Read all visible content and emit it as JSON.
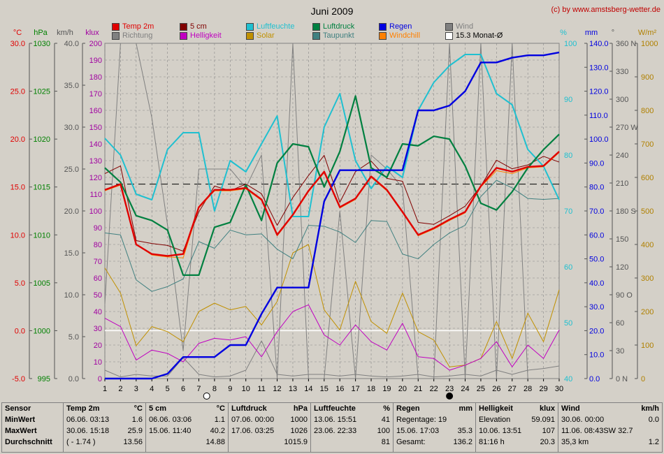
{
  "title": "Juni 2009",
  "copyright": "(c) by www.amstsberg-wetter.de",
  "axes": {
    "temp": {
      "unit": "°C",
      "ticks": [
        "30.0",
        "25.0",
        "20.0",
        "15.0",
        "10.0",
        "5.0",
        "0.0",
        "-5.0"
      ],
      "color": "#e00000"
    },
    "pressure": {
      "unit": "hPa",
      "ticks": [
        "1030",
        "1025",
        "1020",
        "1015",
        "1010",
        "1005",
        "1000",
        "995"
      ],
      "color": "#008000"
    },
    "wind": {
      "unit": "km/h",
      "ticks": [
        "40.0",
        "35.0",
        "30.0",
        "25.0",
        "20.0",
        "15.0",
        "10.0",
        "5.0",
        "0.0"
      ],
      "color": "#555555"
    },
    "lux": {
      "unit": "klux",
      "ticks": [
        "200",
        "190",
        "180",
        "170",
        "160",
        "150",
        "140",
        "130",
        "120",
        "110",
        "100",
        "90",
        "80",
        "70",
        "60",
        "50",
        "40",
        "30",
        "20",
        "10",
        "0"
      ],
      "color": "#a000a0"
    },
    "humidity": {
      "unit": "%",
      "ticks": [
        "100",
        "90",
        "80",
        "70",
        "60",
        "50",
        "40"
      ],
      "color": "#20c0d0"
    },
    "rain": {
      "unit": "mm",
      "ticks": [
        "140.0",
        "130.0",
        "120.0",
        "110.0",
        "100.0",
        "90.0",
        "80.0",
        "70.0",
        "60.0",
        "50.0",
        "40.0",
        "30.0",
        "20.0",
        "10.0",
        "0.0"
      ],
      "color": "#0000e0"
    },
    "direction": {
      "unit": "°",
      "ticks": [
        "360 N",
        "330",
        "300",
        "270 W",
        "240",
        "210",
        "180 S",
        "150",
        "120",
        "90 O",
        "60",
        "30",
        "0 N"
      ],
      "color": "#555555"
    },
    "solar": {
      "unit": "W/m²",
      "ticks": [
        "1000",
        "900",
        "800",
        "700",
        "600",
        "500",
        "400",
        "300",
        "200",
        "100",
        "0"
      ],
      "color": "#b08000"
    }
  },
  "legend": [
    {
      "label": "Temp 2m",
      "color": "#e00000"
    },
    {
      "label": "Richtung",
      "color": "#808080"
    },
    {
      "label": "5 cm",
      "color": "#800000"
    },
    {
      "label": "Helligkeit",
      "color": "#c000c0"
    },
    {
      "label": "Luftfeuchte",
      "color": "#20c0d0"
    },
    {
      "label": "Solar",
      "color": "#c09000"
    },
    {
      "label": "Luftdruck",
      "color": "#008040"
    },
    {
      "label": "Taupunkt",
      "color": "#408080"
    },
    {
      "label": "Regen",
      "color": "#0000e0"
    },
    {
      "label": "Windchill",
      "color": "#ff8000"
    },
    {
      "label": "Wind",
      "color": "#808080"
    },
    {
      "label": "15.3 Monat-Ø",
      "color": "#ffffff"
    }
  ],
  "chart_data": {
    "type": "line",
    "title": "Juni 2009",
    "x": [
      1,
      2,
      3,
      4,
      5,
      6,
      7,
      8,
      9,
      10,
      11,
      12,
      13,
      14,
      15,
      16,
      17,
      18,
      19,
      20,
      21,
      22,
      23,
      24,
      25,
      26,
      27,
      28,
      29,
      30
    ],
    "monthly_mean_temp": 15.3,
    "series": [
      {
        "name": "Temp 2m",
        "axis": "temp",
        "values": [
          14.7,
          15.3,
          9.0,
          8.0,
          7.8,
          8.0,
          12.9,
          14.7,
          14.7,
          14.9,
          13.7,
          10.0,
          12.1,
          14.6,
          16.6,
          12.9,
          13.8,
          16.1,
          14.7,
          12.4,
          10.0,
          10.7,
          11.6,
          12.4,
          15.1,
          17.0,
          16.6,
          17.1,
          17.2,
          18.7
        ],
        "line_color": "#e00000"
      },
      {
        "name": "5 cm",
        "axis": "temp",
        "values": [
          16.4,
          17.2,
          9.4,
          9.1,
          8.9,
          8.3,
          12.4,
          15.1,
          14.6,
          15.3,
          14.3,
          11.0,
          13.9,
          16.2,
          18.3,
          13.4,
          16.6,
          17.7,
          15.9,
          15.6,
          11.3,
          11.1,
          12.0,
          13.0,
          15.1,
          17.8,
          16.9,
          17.3,
          18.2,
          17.6
        ],
        "line_color": "#800000"
      },
      {
        "name": "Windchill",
        "axis": "temp",
        "values": [
          14.6,
          15.2,
          9.0,
          7.9,
          7.7,
          7.6,
          12.8,
          14.6,
          14.6,
          14.8,
          13.6,
          9.9,
          12.0,
          14.5,
          16.5,
          12.8,
          13.7,
          16.0,
          14.6,
          12.3,
          9.9,
          10.6,
          11.5,
          12.3,
          15.0,
          16.7,
          16.4,
          17.0,
          17.1,
          18.6
        ],
        "line_color": "#ff8000"
      },
      {
        "name": "Taupunkt",
        "axis": "temp",
        "values": [
          10.2,
          10.0,
          5.3,
          4.1,
          4.6,
          5.4,
          9.3,
          8.6,
          10.5,
          10.0,
          10.1,
          8.5,
          7.5,
          11.0,
          10.9,
          10.3,
          9.2,
          11.5,
          11.4,
          8.0,
          7.5,
          9.0,
          10.2,
          11.0,
          14.0,
          15.7,
          14.9,
          13.8,
          13.7,
          13.8
        ],
        "line_color": "#408080"
      },
      {
        "name": "Luftdruck",
        "axis": "pressure",
        "values": [
          1017.0,
          1015.5,
          1012.0,
          1011.5,
          1010.5,
          1005.8,
          1005.8,
          1010.8,
          1011.3,
          1015.2,
          1011.5,
          1017.5,
          1019.5,
          1019.2,
          1015.0,
          1018.7,
          1024.5,
          1017.0,
          1016.0,
          1019.5,
          1019.3,
          1020.3,
          1020.0,
          1017.2,
          1013.3,
          1012.6,
          1014.5,
          1017.0,
          1018.9,
          1020.5
        ],
        "line_color": "#008040"
      },
      {
        "name": "Luftfeuchte",
        "axis": "humidity",
        "values": [
          83,
          80,
          73,
          72,
          81,
          84,
          84,
          70,
          79,
          77,
          82,
          87,
          69,
          69,
          85,
          91,
          79,
          74,
          78,
          76,
          88,
          93,
          96,
          98,
          98,
          91,
          89,
          81,
          78,
          72
        ],
        "line_color": "#20c0d0"
      },
      {
        "name": "Regen",
        "axis": "rain",
        "values": [
          0,
          0,
          0,
          0,
          2,
          9,
          9,
          9,
          14,
          14,
          27,
          38,
          38,
          38,
          74,
          87,
          87,
          87,
          87,
          87,
          112,
          112,
          114,
          120,
          132,
          132,
          134,
          135,
          135,
          136.2
        ],
        "line_color": "#0000e0"
      },
      {
        "name": "Helligkeit",
        "axis": "lux",
        "values": [
          36,
          31,
          11,
          17,
          15,
          10,
          21,
          24,
          23,
          25,
          13,
          28,
          40,
          44,
          26,
          20,
          32,
          22,
          17,
          33,
          13,
          12,
          5,
          8,
          12,
          22,
          7,
          20,
          12,
          29
        ],
        "line_color": "#c000c0"
      },
      {
        "name": "Solar",
        "axis": "solar",
        "values": [
          330,
          255,
          98,
          155,
          140,
          110,
          200,
          225,
          205,
          215,
          160,
          230,
          375,
          400,
          205,
          145,
          290,
          170,
          135,
          255,
          140,
          115,
          35,
          40,
          60,
          170,
          60,
          195,
          110,
          265
        ],
        "line_color": "#c09000"
      },
      {
        "name": "Wind",
        "axis": "wind",
        "values": [
          1.0,
          0.2,
          0.5,
          0.3,
          0.3,
          2.5,
          0.5,
          0.2,
          0.3,
          1.0,
          4.5,
          0.5,
          0.3,
          0.5,
          0.5,
          0.3,
          0.5,
          0.3,
          0.2,
          0.3,
          0.5,
          0.2,
          0.3,
          0.5,
          0.3,
          1.0,
          0.5,
          1.0,
          1.2,
          1.5
        ],
        "line_color": "#808080"
      },
      {
        "name": "Richtung",
        "axis": "direction",
        "values": [
          80,
          360,
          360,
          280,
          165,
          30,
          225,
          225,
          225,
          205,
          240,
          0,
          360,
          0,
          0,
          180,
          0,
          240,
          225,
          205,
          0,
          0,
          360,
          0,
          360,
          0,
          360,
          0,
          0,
          0
        ],
        "line_color": "#808080"
      }
    ],
    "moon_phases": [
      {
        "day": 7.5,
        "phase": "full"
      },
      {
        "day": 23,
        "phase": "new"
      }
    ]
  },
  "stats": {
    "labels": {
      "title": "Sensor",
      "min": "MinWert",
      "max": "MaxWert",
      "avg": "Durchschnitt"
    },
    "columns": [
      {
        "title": "Temp 2m",
        "unit": "°C",
        "min": {
          "left": "06.06.  03:13",
          "right": "1.6"
        },
        "max": {
          "left": "30.06.  15:18",
          "right": "25.9"
        },
        "avg": {
          "left": "( - 1.74 )",
          "right": "13.56"
        }
      },
      {
        "title": "5 cm",
        "unit": "°C",
        "min": {
          "left": "06.06.  03:06",
          "right": "1.1"
        },
        "max": {
          "left": "15.06.  11:40",
          "right": "40.2"
        },
        "avg": {
          "left": "",
          "right": "14.88"
        }
      },
      {
        "title": "Luftdruck",
        "unit": "hPa",
        "min": {
          "left": "07.06.  00:00",
          "right": "1000"
        },
        "max": {
          "left": "17.06.  03:25",
          "right": "1026"
        },
        "avg": {
          "left": "",
          "right": "1015.9"
        }
      },
      {
        "title": "Luftfeuchte",
        "unit": "%",
        "min": {
          "left": "13.06.  15:51",
          "right": "41"
        },
        "max": {
          "left": "23.06.  22:33",
          "right": "100"
        },
        "avg": {
          "left": "",
          "right": "81"
        }
      },
      {
        "title": "Regen",
        "unit": "mm",
        "min": {
          "left": "Regentage: 19",
          "right": ""
        },
        "max": {
          "left": "15.06.  17:03",
          "right": "35.3"
        },
        "avg": {
          "left": "Gesamt:",
          "right": "136.2"
        }
      },
      {
        "title": "Helligkeit",
        "unit": "klux",
        "min": {
          "left": "Elevation",
          "right": "59.091"
        },
        "max": {
          "left": "10.06.  13:51",
          "right": "107"
        },
        "avg": {
          "left": "81:16 h",
          "right": "20.3"
        }
      },
      {
        "title": "Wind",
        "unit": "km/h",
        "min": {
          "left": "30.06.  00:00",
          "right": "0.0"
        },
        "max": {
          "left": "11.06.  08:43SW 32.7",
          "right": ""
        },
        "avg": {
          "left": "35,3 km",
          "right": "1.2"
        }
      }
    ]
  }
}
